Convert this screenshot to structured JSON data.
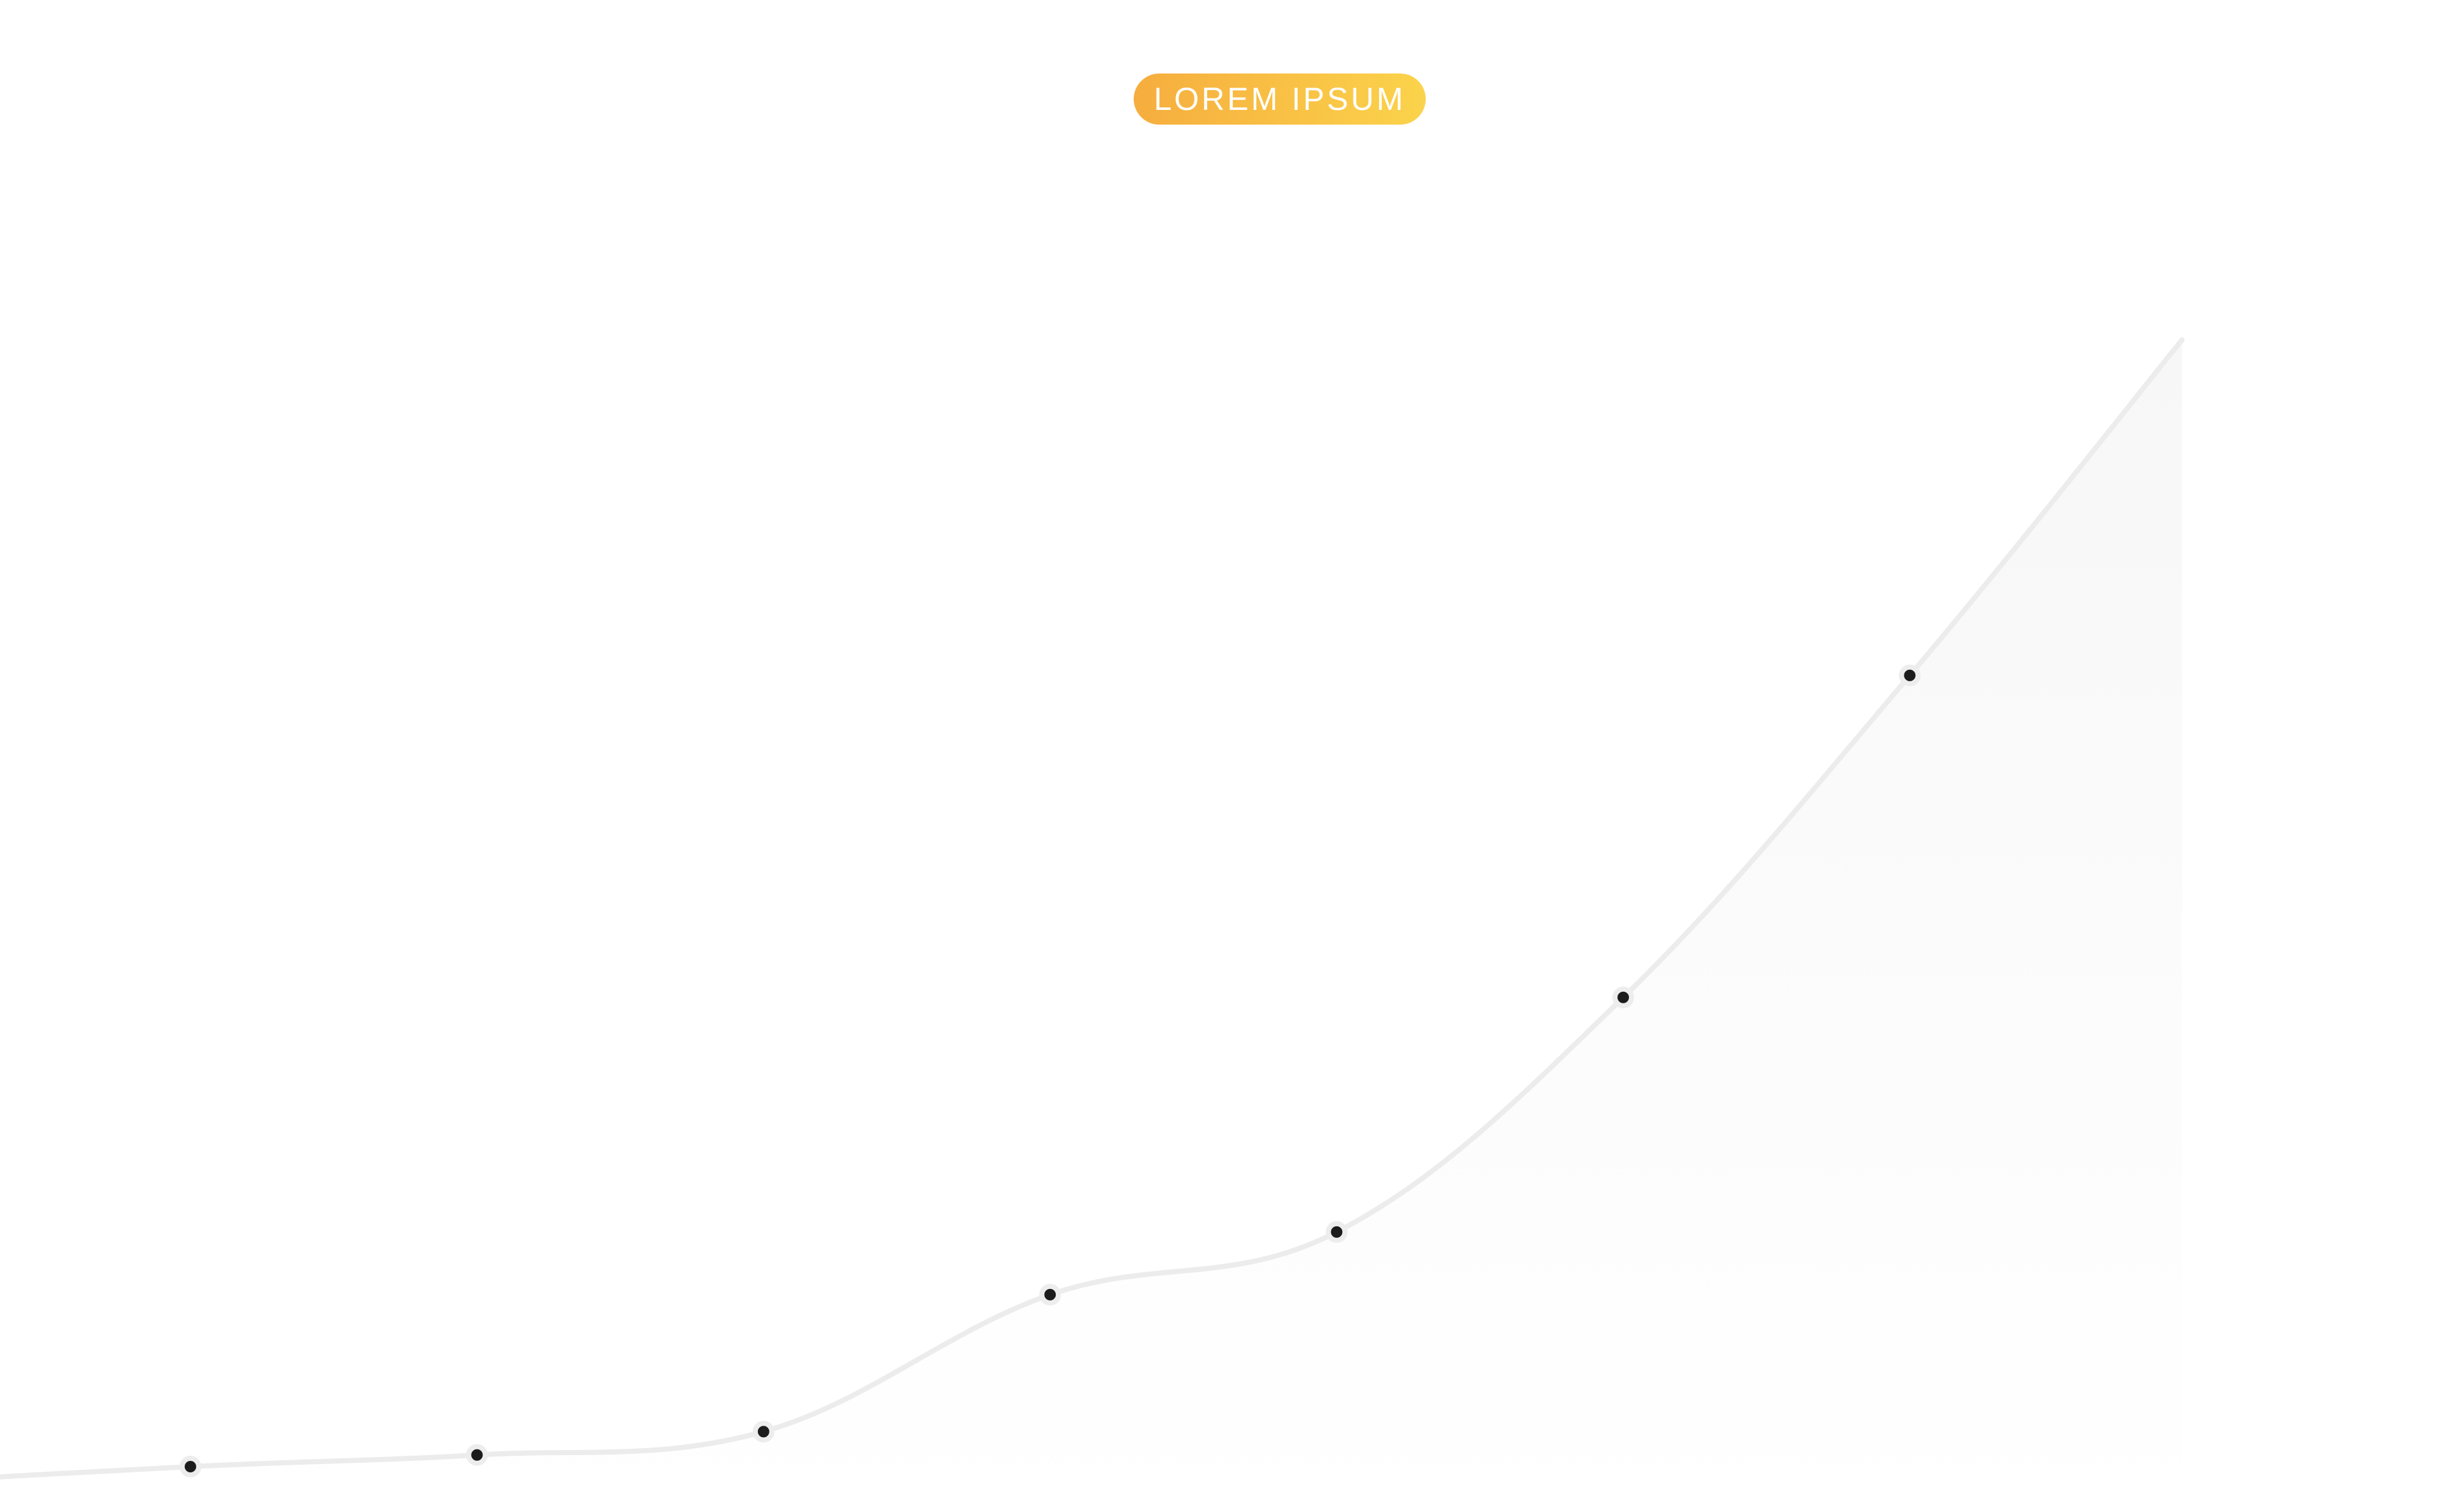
{
  "badge": {
    "label": "LOREM IPSUM",
    "gradient_start": "#f6ad3e",
    "gradient_end": "#fbd34b"
  },
  "chart_data": {
    "type": "area",
    "grid": false,
    "legend": "none",
    "xlim": [
      0,
      7.5
    ],
    "ylim": [
      0,
      100
    ],
    "series": [
      {
        "x": [
          0,
          1,
          2,
          3,
          4,
          5,
          6
        ],
        "values": [
          1.8,
          2.6,
          4.2,
          13.6,
          17.9,
          34.0,
          56.1
        ]
      }
    ],
    "line_color": "#ececec",
    "fill_color": "#f7f7f7",
    "marker_color": "#1c1c1c"
  }
}
